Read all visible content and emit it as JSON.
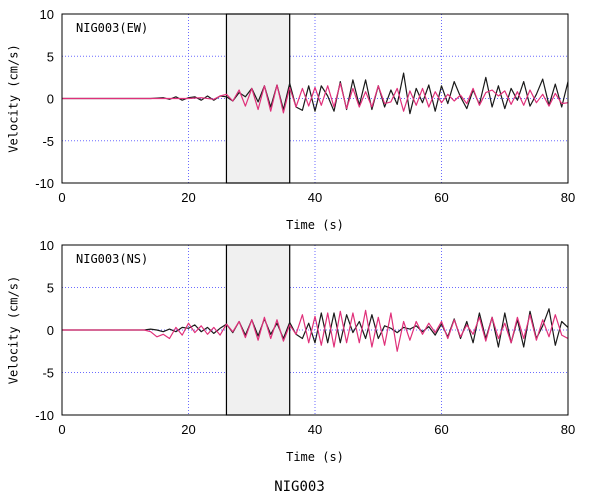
{
  "caption": "NIG003",
  "colors": {
    "grid": "#6b6bff",
    "series_black": "#1a1a1a",
    "series_red": "#e0307a",
    "window_fill": "#f0f0f0"
  },
  "chart_data": [
    {
      "type": "line",
      "panel_label": "NIG003(EW)",
      "xlabel": "Time (s)",
      "ylabel": "Velocity (cm/s)",
      "xlim": [
        0,
        80
      ],
      "ylim": [
        -10,
        10
      ],
      "xticks": [
        0,
        20,
        40,
        60,
        80
      ],
      "yticks": [
        -10,
        -5,
        0,
        5,
        10
      ],
      "grid": true,
      "highlight_window": [
        26,
        36
      ],
      "series": [
        {
          "color": "black",
          "points": [
            [
              0,
              0
            ],
            [
              14,
              0
            ],
            [
              16,
              0.1
            ],
            [
              17,
              -0.1
            ],
            [
              18,
              0.2
            ],
            [
              19,
              -0.2
            ],
            [
              20,
              0.1
            ],
            [
              21,
              0.2
            ],
            [
              22,
              -0.2
            ],
            [
              23,
              0.3
            ],
            [
              24,
              -0.2
            ],
            [
              25,
              0.3
            ],
            [
              26,
              0.2
            ],
            [
              27,
              -0.3
            ],
            [
              28,
              0.7
            ],
            [
              29,
              0.2
            ],
            [
              30,
              1.2
            ],
            [
              31,
              -0.4
            ],
            [
              32,
              1.5
            ],
            [
              33,
              -1.0
            ],
            [
              34,
              1.6
            ],
            [
              35,
              -1.3
            ],
            [
              36,
              1.8
            ],
            [
              37,
              -1.0
            ],
            [
              38,
              -1.4
            ],
            [
              39,
              1.5
            ],
            [
              40,
              -1.5
            ],
            [
              41,
              1.5
            ],
            [
              42,
              0.3
            ],
            [
              43,
              -1.5
            ],
            [
              44,
              2.0
            ],
            [
              45,
              -1.3
            ],
            [
              46,
              2.2
            ],
            [
              47,
              -0.8
            ],
            [
              48,
              2.2
            ],
            [
              49,
              -1.3
            ],
            [
              50,
              1.5
            ],
            [
              51,
              -1.0
            ],
            [
              52,
              1.0
            ],
            [
              53,
              -0.7
            ],
            [
              54,
              3.0
            ],
            [
              55,
              -1.8
            ],
            [
              56,
              1.2
            ],
            [
              57,
              -0.5
            ],
            [
              58,
              1.6
            ],
            [
              59,
              -1.5
            ],
            [
              60,
              1.5
            ],
            [
              61,
              -0.6
            ],
            [
              62,
              2.0
            ],
            [
              63,
              0.2
            ],
            [
              64,
              -1.2
            ],
            [
              65,
              1.0
            ],
            [
              66,
              -0.7
            ],
            [
              67,
              2.5
            ],
            [
              68,
              -1.0
            ],
            [
              69,
              1.5
            ],
            [
              70,
              -1.2
            ],
            [
              71,
              1.2
            ],
            [
              72,
              -0.2
            ],
            [
              73,
              2.0
            ],
            [
              74,
              -0.9
            ],
            [
              75,
              0.5
            ],
            [
              76,
              2.3
            ],
            [
              77,
              -0.8
            ],
            [
              78,
              1.7
            ],
            [
              79,
              -1.0
            ],
            [
              80,
              2.0
            ]
          ]
        },
        {
          "color": "red",
          "points": [
            [
              0,
              0
            ],
            [
              20,
              0
            ],
            [
              22,
              0.1
            ],
            [
              24,
              -0.1
            ],
            [
              25,
              0.3
            ],
            [
              26,
              0.5
            ],
            [
              27,
              -0.3
            ],
            [
              28,
              1.0
            ],
            [
              29,
              -0.9
            ],
            [
              30,
              1.2
            ],
            [
              31,
              -1.3
            ],
            [
              32,
              1.5
            ],
            [
              33,
              -1.5
            ],
            [
              34,
              1.6
            ],
            [
              35,
              -1.7
            ],
            [
              36,
              1.3
            ],
            [
              37,
              -1.0
            ],
            [
              38,
              1.2
            ],
            [
              39,
              -0.9
            ],
            [
              40,
              1.3
            ],
            [
              41,
              -0.8
            ],
            [
              42,
              1.5
            ],
            [
              43,
              -1.0
            ],
            [
              44,
              1.8
            ],
            [
              45,
              -1.2
            ],
            [
              46,
              1.2
            ],
            [
              47,
              -1.0
            ],
            [
              48,
              0.8
            ],
            [
              49,
              -1.0
            ],
            [
              50,
              1.5
            ],
            [
              51,
              -0.6
            ],
            [
              52,
              -0.4
            ],
            [
              53,
              1.2
            ],
            [
              54,
              -1.5
            ],
            [
              55,
              0.9
            ],
            [
              56,
              -0.8
            ],
            [
              57,
              1.2
            ],
            [
              58,
              -1.0
            ],
            [
              59,
              0.8
            ],
            [
              60,
              -0.5
            ],
            [
              61,
              0.5
            ],
            [
              62,
              -0.3
            ],
            [
              63,
              0.4
            ],
            [
              64,
              -0.6
            ],
            [
              65,
              1.2
            ],
            [
              66,
              -0.8
            ],
            [
              67,
              0.7
            ],
            [
              68,
              1.0
            ],
            [
              69,
              0.3
            ],
            [
              70,
              0.9
            ],
            [
              71,
              -0.7
            ],
            [
              72,
              0.8
            ],
            [
              73,
              -0.8
            ],
            [
              74,
              1.0
            ],
            [
              75,
              -0.5
            ],
            [
              76,
              0.5
            ],
            [
              77,
              -0.9
            ],
            [
              78,
              0.6
            ],
            [
              79,
              -0.6
            ],
            [
              80,
              -0.5
            ]
          ]
        }
      ]
    },
    {
      "type": "line",
      "panel_label": "NIG003(NS)",
      "xlabel": "Time (s)",
      "ylabel": "Velocity (cm/s)",
      "xlim": [
        0,
        80
      ],
      "ylim": [
        -10,
        10
      ],
      "xticks": [
        0,
        20,
        40,
        60,
        80
      ],
      "yticks": [
        -10,
        -5,
        0,
        5,
        10
      ],
      "grid": true,
      "highlight_window": [
        26,
        36
      ],
      "series": [
        {
          "color": "black",
          "points": [
            [
              0,
              0
            ],
            [
              13,
              0
            ],
            [
              14,
              0.1
            ],
            [
              15,
              0
            ],
            [
              16,
              -0.2
            ],
            [
              17,
              0.1
            ],
            [
              18,
              -0.2
            ],
            [
              19,
              0.3
            ],
            [
              20,
              0.2
            ],
            [
              21,
              0.6
            ],
            [
              22,
              -0.2
            ],
            [
              23,
              0.3
            ],
            [
              24,
              -0.4
            ],
            [
              25,
              0.2
            ],
            [
              26,
              0.7
            ],
            [
              27,
              -0.3
            ],
            [
              28,
              1.0
            ],
            [
              29,
              -0.6
            ],
            [
              30,
              1.2
            ],
            [
              31,
              -0.7
            ],
            [
              32,
              1.3
            ],
            [
              33,
              -0.5
            ],
            [
              34,
              0.8
            ],
            [
              35,
              -1.0
            ],
            [
              36,
              0.9
            ],
            [
              37,
              -0.5
            ],
            [
              38,
              -1.0
            ],
            [
              39,
              0.8
            ],
            [
              40,
              -1.5
            ],
            [
              41,
              2.0
            ],
            [
              42,
              -1.5
            ],
            [
              43,
              2.0
            ],
            [
              44,
              -1.5
            ],
            [
              45,
              1.8
            ],
            [
              46,
              -0.3
            ],
            [
              47,
              1.0
            ],
            [
              48,
              -1.0
            ],
            [
              49,
              1.8
            ],
            [
              50,
              -1.0
            ],
            [
              51,
              0.5
            ],
            [
              52,
              0.2
            ],
            [
              53,
              -0.3
            ],
            [
              54,
              0.3
            ],
            [
              55,
              0.1
            ],
            [
              56,
              0.5
            ],
            [
              57,
              -0.2
            ],
            [
              58,
              0.4
            ],
            [
              59,
              -0.6
            ],
            [
              60,
              0.7
            ],
            [
              61,
              -0.8
            ],
            [
              62,
              1.3
            ],
            [
              63,
              -1.0
            ],
            [
              64,
              1.0
            ],
            [
              65,
              -1.5
            ],
            [
              66,
              2.0
            ],
            [
              67,
              -1.0
            ],
            [
              68,
              1.5
            ],
            [
              69,
              -2.0
            ],
            [
              70,
              2.0
            ],
            [
              71,
              -1.5
            ],
            [
              72,
              1.2
            ],
            [
              73,
              -2.0
            ],
            [
              74,
              2.2
            ],
            [
              75,
              -1.0
            ],
            [
              76,
              0.5
            ],
            [
              77,
              2.5
            ],
            [
              78,
              -1.8
            ],
            [
              79,
              1.0
            ],
            [
              80,
              0.3
            ]
          ]
        },
        {
          "color": "red",
          "points": [
            [
              0,
              0
            ],
            [
              13,
              0
            ],
            [
              14,
              -0.2
            ],
            [
              15,
              -0.8
            ],
            [
              16,
              -0.5
            ],
            [
              17,
              -1.0
            ],
            [
              18,
              0.3
            ],
            [
              19,
              -0.6
            ],
            [
              20,
              0.8
            ],
            [
              21,
              -0.3
            ],
            [
              22,
              0.5
            ],
            [
              23,
              -0.5
            ],
            [
              24,
              0.3
            ],
            [
              25,
              -0.6
            ],
            [
              26,
              0.7
            ],
            [
              27,
              -0.2
            ],
            [
              28,
              1.0
            ],
            [
              29,
              -0.9
            ],
            [
              30,
              1.2
            ],
            [
              31,
              -1.2
            ],
            [
              32,
              1.5
            ],
            [
              33,
              -1.0
            ],
            [
              34,
              1.2
            ],
            [
              35,
              -1.3
            ],
            [
              36,
              0.6
            ],
            [
              37,
              -0.5
            ],
            [
              38,
              1.8
            ],
            [
              39,
              -1.5
            ],
            [
              40,
              1.6
            ],
            [
              41,
              -1.8
            ],
            [
              42,
              2.0
            ],
            [
              43,
              -2.0
            ],
            [
              44,
              2.2
            ],
            [
              45,
              -1.5
            ],
            [
              46,
              2.0
            ],
            [
              47,
              -1.5
            ],
            [
              48,
              2.3
            ],
            [
              49,
              -2.0
            ],
            [
              50,
              1.5
            ],
            [
              51,
              -1.8
            ],
            [
              52,
              2.0
            ],
            [
              53,
              -2.5
            ],
            [
              54,
              1.0
            ],
            [
              55,
              -1.2
            ],
            [
              56,
              1.0
            ],
            [
              57,
              -0.5
            ],
            [
              58,
              0.8
            ],
            [
              59,
              -0.3
            ],
            [
              60,
              1.0
            ],
            [
              61,
              -1.0
            ],
            [
              62,
              1.2
            ],
            [
              63,
              -0.8
            ],
            [
              64,
              0.6
            ],
            [
              65,
              -0.5
            ],
            [
              66,
              1.5
            ],
            [
              67,
              -1.3
            ],
            [
              68,
              1.5
            ],
            [
              69,
              -1.0
            ],
            [
              70,
              0.8
            ],
            [
              71,
              -1.5
            ],
            [
              72,
              1.5
            ],
            [
              73,
              -1.0
            ],
            [
              74,
              1.8
            ],
            [
              75,
              -1.2
            ],
            [
              76,
              1.2
            ],
            [
              77,
              -0.8
            ],
            [
              78,
              1.8
            ],
            [
              79,
              -0.6
            ],
            [
              80,
              -1.0
            ]
          ]
        }
      ]
    }
  ]
}
